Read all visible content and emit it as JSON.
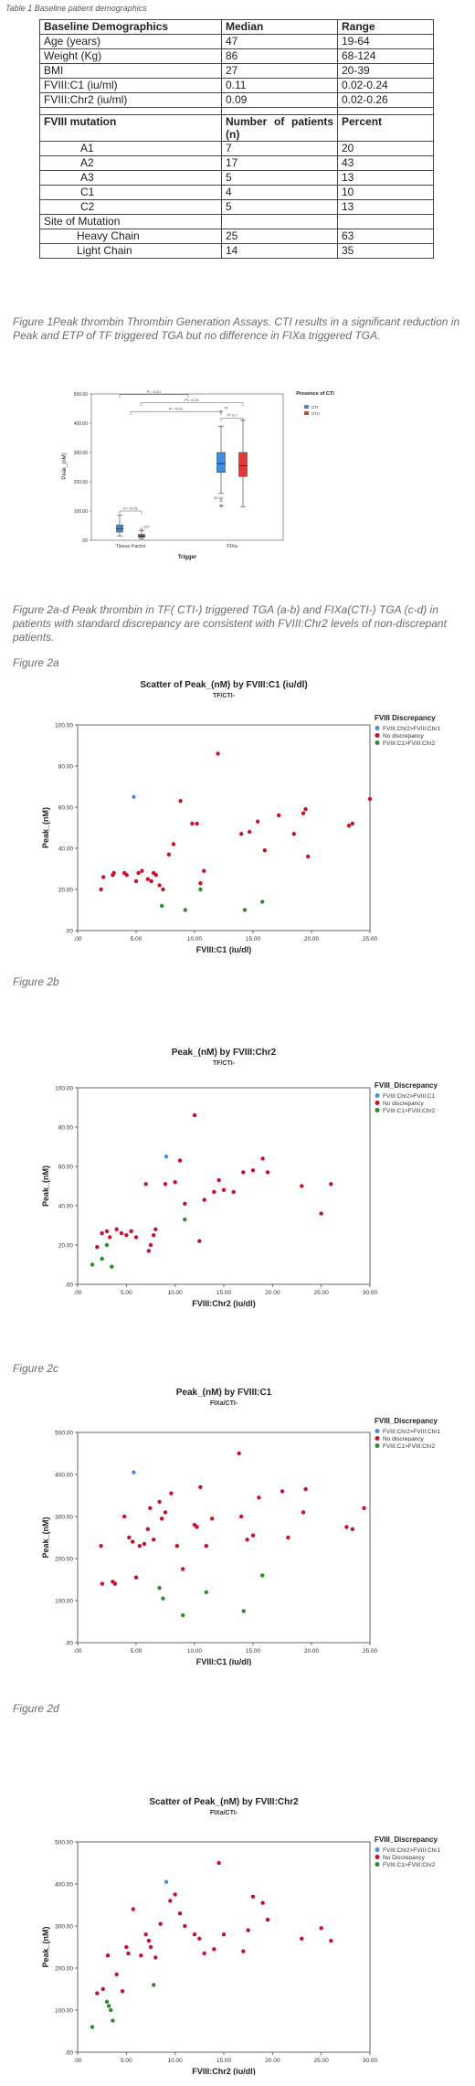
{
  "table1": {
    "caption": "Table 1 Baseline patient demographics",
    "header": [
      "Baseline Demographics",
      "Median",
      "Range"
    ],
    "rows": [
      [
        "Age (years)",
        "47",
        "19-64"
      ],
      [
        "Weight (Kg)",
        "86",
        "68-124"
      ],
      [
        "BMI",
        "27",
        "20-39"
      ],
      [
        "FVIII:C1 (iu/ml)",
        "0.11",
        "0.02-0.24"
      ],
      [
        "FVIII:Chr2 (iu/ml)",
        "0.09",
        "0.02-0.26"
      ]
    ],
    "mutation_header": [
      "FVIII mutation",
      "Number of patients (n)",
      "Percent"
    ],
    "mutation_rows": [
      [
        "A1",
        "7",
        "20"
      ],
      [
        "A2",
        "17",
        "43"
      ],
      [
        "A3",
        "5",
        "13"
      ],
      [
        "C1",
        "4",
        "10"
      ],
      [
        "C2",
        "5",
        "13"
      ]
    ],
    "site_label": "Site of Mutation",
    "site_rows": [
      [
        "Heavy Chain",
        "25",
        "63"
      ],
      [
        "Light Chain",
        "14",
        "35"
      ]
    ]
  },
  "figure1": {
    "caption": "Figure 1Peak thrombin Thrombin Generation Assays. CTI results in a significant reduction in Peak and ETP of TF triggered TGA but no difference in FIXa triggered TGA."
  },
  "figure2_caption": "Figure 2a-d Peak thrombin in TF( CTI-) triggered TGA (a-b) and FIXa(CTI-) TGA (c-d) in patients with standard discrepancy are consistent with FVIII:Chr2 levels of non-discrepant patients.",
  "figure_labels": {
    "a": "Figure 2a",
    "b": "Figure 2b",
    "c": "Figure 2c",
    "d": "Figure 2d"
  },
  "colors": {
    "blue": "#4a90d9",
    "red": "#c8102e",
    "green": "#2e8b2e",
    "box_blue": "#3d8fe0",
    "box_red": "#e03a3a"
  },
  "chart_data": [
    {
      "type": "box",
      "ylabel": "Peak_(nM)",
      "xlabel": "Trigger",
      "yticks": [
        ".00",
        "100.00",
        "200.00",
        "300.00",
        "400.00",
        "500.00"
      ],
      "ylim": [
        0,
        500
      ],
      "categories": [
        "Tissue Factor",
        "FIXa"
      ],
      "legend_title": "Presence of CTI",
      "legend": [
        "CTI",
        "CTI+"
      ],
      "p_labels": [
        "P< <0.01",
        "P< <0.01",
        "P< <0.01",
        "P= 0.7",
        "P< <0.01"
      ],
      "outlier_labels": [
        "74",
        "33 42",
        "40",
        "112"
      ],
      "boxes": [
        {
          "group": "Tissue Factor",
          "series": "CTI",
          "min": 15,
          "q1": 28,
          "median": 40,
          "q3": 52,
          "max": 85
        },
        {
          "group": "Tissue Factor",
          "series": "CTI+",
          "min": 5,
          "q1": 10,
          "median": 14,
          "q3": 20,
          "max": 32,
          "outliers": [
            38
          ]
        },
        {
          "group": "FIXa",
          "series": "CTI",
          "min": 160,
          "q1": 232,
          "median": 262,
          "q3": 300,
          "max": 390,
          "outliers": [
            440,
            135,
            118
          ]
        },
        {
          "group": "FIXa",
          "series": "CTI+",
          "min": 115,
          "q1": 218,
          "median": 255,
          "q3": 300,
          "max": 410
        }
      ]
    },
    {
      "type": "scatter",
      "title": "Scatter of Peak_(nM) by FVIII:C1 (iu/dl)",
      "subtitle": "TF/CTI-",
      "xlabel": "FVIII:C1 (iu/dl)",
      "ylabel": "Peak_(nM)",
      "xlim": [
        0,
        25
      ],
      "ylim": [
        0,
        100
      ],
      "xticks": [
        ".00",
        "5.00",
        "10.00",
        "15.00",
        "20.00",
        "25.00"
      ],
      "yticks": [
        ".00",
        "20.00",
        "40.00",
        "60.00",
        "80.00",
        "100.00"
      ],
      "legend_title": "FVIII Discrepancy",
      "legend": [
        "FVIII:Chr2>FVIII:Chr1",
        "No discrepancy",
        "FVIII:C1>FVIII:Chr2"
      ],
      "series": [
        {
          "name": "FVIII:Chr2>FVIII:Chr1",
          "color": "blue",
          "points": [
            [
              4.8,
              65
            ]
          ]
        },
        {
          "name": "No discrepancy",
          "color": "red",
          "points": [
            [
              2,
              20
            ],
            [
              2.2,
              26
            ],
            [
              3,
              27
            ],
            [
              3.1,
              28
            ],
            [
              4,
              28
            ],
            [
              4.2,
              27
            ],
            [
              5,
              24
            ],
            [
              5.2,
              28
            ],
            [
              5.5,
              29
            ],
            [
              6,
              25
            ],
            [
              6.3,
              24
            ],
            [
              6.5,
              28
            ],
            [
              6.7,
              27
            ],
            [
              7,
              22
            ],
            [
              7.3,
              20
            ],
            [
              7.8,
              37
            ],
            [
              8.2,
              42
            ],
            [
              8.8,
              63
            ],
            [
              9.8,
              52
            ],
            [
              10.2,
              52
            ],
            [
              10.5,
              23
            ],
            [
              10.8,
              29
            ],
            [
              12,
              86
            ],
            [
              14,
              47
            ],
            [
              14.7,
              48
            ],
            [
              15.4,
              53
            ],
            [
              16,
              39
            ],
            [
              17.2,
              56
            ],
            [
              18.5,
              47
            ],
            [
              19.3,
              57
            ],
            [
              19.5,
              59
            ],
            [
              19.7,
              36
            ],
            [
              23.2,
              51
            ],
            [
              23.5,
              52
            ],
            [
              25,
              64
            ]
          ]
        },
        {
          "name": "FVIII:C1>FVIII:Chr2",
          "color": "green",
          "points": [
            [
              7.2,
              12
            ],
            [
              9.2,
              10
            ],
            [
              10.5,
              20
            ],
            [
              14.3,
              10
            ],
            [
              15.8,
              14
            ]
          ]
        }
      ]
    },
    {
      "type": "scatter",
      "title": "Peak_(nM) by FVIII:Chr2",
      "subtitle": "TF/CTI-",
      "xlabel": "FVIII:Chr2 (iu/dl)",
      "ylabel": "Peak_(nM)",
      "xlim": [
        0,
        30
      ],
      "ylim": [
        0,
        100
      ],
      "xticks": [
        ".00",
        "5.00",
        "10.00",
        "15.00",
        "20.00",
        "25.00",
        "30.00"
      ],
      "yticks": [
        ".00",
        "20.00",
        "40.00",
        "60.00",
        "80.00",
        "100.00"
      ],
      "legend_title": "FVIII_Discrepancy",
      "legend": [
        "FVIII:Chr2>FVIII:C1",
        "No discrepancy",
        "FVIII:C1>FVIII:Chr2"
      ],
      "series": [
        {
          "name": "FVIII:Chr2>FVIII:C1",
          "color": "blue",
          "points": [
            [
              9.1,
              65
            ]
          ]
        },
        {
          "name": "No discrepancy",
          "color": "red",
          "points": [
            [
              2,
              19
            ],
            [
              2.5,
              26
            ],
            [
              3,
              27
            ],
            [
              3.3,
              24
            ],
            [
              4,
              28
            ],
            [
              4.5,
              26
            ],
            [
              5,
              25
            ],
            [
              5.5,
              27
            ],
            [
              6,
              24
            ],
            [
              7,
              51
            ],
            [
              7.3,
              17
            ],
            [
              7.5,
              20
            ],
            [
              7.8,
              25
            ],
            [
              8,
              28
            ],
            [
              9,
              51
            ],
            [
              10,
              52
            ],
            [
              10.5,
              63
            ],
            [
              11,
              41
            ],
            [
              12,
              86
            ],
            [
              12.5,
              22
            ],
            [
              13,
              43
            ],
            [
              14,
              47
            ],
            [
              14.5,
              53
            ],
            [
              15,
              48
            ],
            [
              16,
              47
            ],
            [
              17,
              57
            ],
            [
              18,
              58
            ],
            [
              19,
              64
            ],
            [
              19.5,
              57
            ],
            [
              23,
              50
            ],
            [
              25,
              36
            ],
            [
              26,
              51
            ]
          ]
        },
        {
          "name": "FVIII:C1>FVIII:Chr2",
          "color": "green",
          "points": [
            [
              1.5,
              10
            ],
            [
              2.5,
              13
            ],
            [
              3,
              20
            ],
            [
              3.5,
              9
            ],
            [
              11,
              33
            ]
          ]
        }
      ]
    },
    {
      "type": "scatter",
      "title": "Peak_(nM) by FVIII:C1",
      "subtitle": "FIXa/CTI-",
      "xlabel": "FVIII:C1 (iu/dl)",
      "ylabel": "Peak_(nM)",
      "xlim": [
        0,
        25
      ],
      "ylim": [
        0,
        500
      ],
      "xticks": [
        ".00",
        "5.00",
        "10.00",
        "15.00",
        "20.00",
        "25.00"
      ],
      "yticks": [
        ".00",
        "100.00",
        "200.00",
        "300.00",
        "400.00",
        "500.00"
      ],
      "legend_title": "FVIII_Discrepancy",
      "legend": [
        "FVIII:Chr2>FVIII:Chr1",
        "No discrepancy",
        "FVIII:C1>FVIII:Chr2"
      ],
      "series": [
        {
          "name": "FVIII:Chr2>FVIII:Chr1",
          "color": "blue",
          "points": [
            [
              4.8,
              405
            ]
          ]
        },
        {
          "name": "No discrepancy",
          "color": "red",
          "points": [
            [
              2,
              230
            ],
            [
              2.1,
              140
            ],
            [
              3,
              145
            ],
            [
              3.2,
              140
            ],
            [
              4,
              300
            ],
            [
              4.4,
              250
            ],
            [
              4.7,
              240
            ],
            [
              5,
              155
            ],
            [
              5.3,
              230
            ],
            [
              5.7,
              235
            ],
            [
              6,
              270
            ],
            [
              6.2,
              320
            ],
            [
              6.5,
              245
            ],
            [
              7,
              335
            ],
            [
              7.2,
              295
            ],
            [
              7.5,
              310
            ],
            [
              8,
              355
            ],
            [
              8.5,
              230
            ],
            [
              9,
              175
            ],
            [
              10,
              280
            ],
            [
              10.2,
              275
            ],
            [
              10.5,
              370
            ],
            [
              11,
              230
            ],
            [
              11.5,
              295
            ],
            [
              13.8,
              450
            ],
            [
              14,
              300
            ],
            [
              14.5,
              245
            ],
            [
              15,
              255
            ],
            [
              15.5,
              345
            ],
            [
              17.5,
              360
            ],
            [
              18,
              250
            ],
            [
              19.3,
              310
            ],
            [
              19.5,
              365
            ],
            [
              23,
              275
            ],
            [
              23.5,
              270
            ],
            [
              24.5,
              320
            ]
          ]
        },
        {
          "name": "FVIII:C1>FVIII:Chr2",
          "color": "green",
          "points": [
            [
              7,
              130
            ],
            [
              7.3,
              105
            ],
            [
              9,
              65
            ],
            [
              11,
              120
            ],
            [
              14.2,
              75
            ],
            [
              15.8,
              160
            ]
          ]
        }
      ]
    },
    {
      "type": "scatter",
      "title": "Scatter of Peak_(nM) by FVIII:Chr2",
      "subtitle": "FIXa/CTI-",
      "xlabel": "FVIII:Chr2 (iu/dl)",
      "ylabel": "Peak_(nM)",
      "xlim": [
        0,
        30
      ],
      "ylim": [
        0,
        500
      ],
      "xticks": [
        ".00",
        "5.00",
        "10.00",
        "15.00",
        "20.00",
        "25.00",
        "30.00"
      ],
      "yticks": [
        ".00",
        "100.00",
        "200.00",
        "300.00",
        "400.00",
        "500.00"
      ],
      "legend_title": "FVIII_Discrepancy",
      "legend": [
        "FVIII:Chr2>FVIII:Chr1",
        "No Discrepancy",
        "FVIII:C1>FVIII:Chr2"
      ],
      "series": [
        {
          "name": "FVIII:Chr2>FVIII:Chr1",
          "color": "blue",
          "points": [
            [
              9.1,
              405
            ]
          ]
        },
        {
          "name": "No Discrepancy",
          "color": "red",
          "points": [
            [
              2,
              140
            ],
            [
              2.6,
              150
            ],
            [
              3.1,
              230
            ],
            [
              4,
              185
            ],
            [
              4.6,
              145
            ],
            [
              5,
              250
            ],
            [
              5.2,
              235
            ],
            [
              5.7,
              340
            ],
            [
              6.5,
              230
            ],
            [
              7,
              280
            ],
            [
              7.3,
              265
            ],
            [
              7.5,
              250
            ],
            [
              8,
              225
            ],
            [
              8.5,
              305
            ],
            [
              9.5,
              360
            ],
            [
              10,
              375
            ],
            [
              10.5,
              330
            ],
            [
              11,
              300
            ],
            [
              12,
              280
            ],
            [
              12.5,
              270
            ],
            [
              13,
              235
            ],
            [
              14,
              245
            ],
            [
              14.5,
              450
            ],
            [
              15,
              280
            ],
            [
              17,
              240
            ],
            [
              17.5,
              290
            ],
            [
              18,
              370
            ],
            [
              19,
              355
            ],
            [
              19.5,
              315
            ],
            [
              23,
              270
            ],
            [
              25,
              295
            ],
            [
              26,
              265
            ]
          ]
        },
        {
          "name": "FVIII:C1>FVIII:Chr2",
          "color": "green",
          "points": [
            [
              1.5,
              60
            ],
            [
              3,
              120
            ],
            [
              3.2,
              110
            ],
            [
              3.4,
              100
            ],
            [
              3.6,
              75
            ],
            [
              7.8,
              160
            ]
          ]
        }
      ]
    }
  ]
}
